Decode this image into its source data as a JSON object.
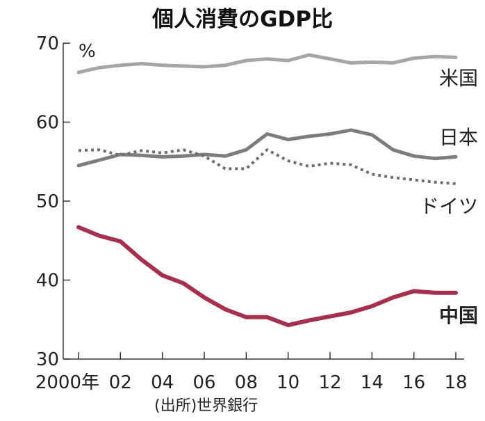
{
  "chart_data": {
    "type": "line",
    "title": "個人消費のGDP比",
    "ylabel": "%",
    "ylim": [
      30,
      70
    ],
    "yticks": [
      "30",
      "40",
      "50",
      "60",
      "70"
    ],
    "xlim": [
      2000,
      2018
    ],
    "xtick_labels": [
      "2000年",
      "02",
      "04",
      "06",
      "08",
      "10",
      "12",
      "14",
      "16",
      "18"
    ],
    "x": [
      2000,
      2001,
      2002,
      2003,
      2004,
      2005,
      2006,
      2007,
      2008,
      2009,
      2010,
      2011,
      2012,
      2013,
      2014,
      2015,
      2016,
      2017,
      2018
    ],
    "grid": false,
    "legend": "direct labels at right end of lines",
    "series": [
      {
        "name": "米国",
        "color": "#a6a6a6",
        "style": "solid",
        "values": [
          66.3,
          66.9,
          67.2,
          67.4,
          67.2,
          67.1,
          67.0,
          67.2,
          67.8,
          68.0,
          67.8,
          68.5,
          68.0,
          67.5,
          67.6,
          67.5,
          68.1,
          68.3,
          68.2
        ]
      },
      {
        "name": "日本",
        "color": "#7d7d7d",
        "style": "solid",
        "values": [
          54.5,
          55.2,
          55.9,
          55.8,
          55.6,
          55.7,
          55.9,
          55.7,
          56.5,
          58.5,
          57.8,
          58.2,
          58.5,
          59.0,
          58.4,
          56.5,
          55.7,
          55.4,
          55.6
        ]
      },
      {
        "name": "ドイツ",
        "color": "#6e6e6e",
        "style": "dotted",
        "values": [
          56.4,
          56.5,
          55.8,
          56.4,
          56.1,
          56.5,
          55.7,
          54.1,
          54.1,
          56.5,
          55.1,
          54.4,
          54.8,
          54.6,
          53.4,
          53.0,
          52.7,
          52.4,
          52.2
        ]
      },
      {
        "name": "中国",
        "color": "#a8304f",
        "style": "solid-bold",
        "values": [
          46.7,
          45.6,
          44.9,
          42.6,
          40.6,
          39.6,
          37.8,
          36.3,
          35.3,
          35.3,
          34.3,
          34.9,
          35.4,
          35.9,
          36.7,
          37.8,
          38.6,
          38.4,
          38.4
        ]
      }
    ],
    "source": "(出所)世界銀行"
  }
}
